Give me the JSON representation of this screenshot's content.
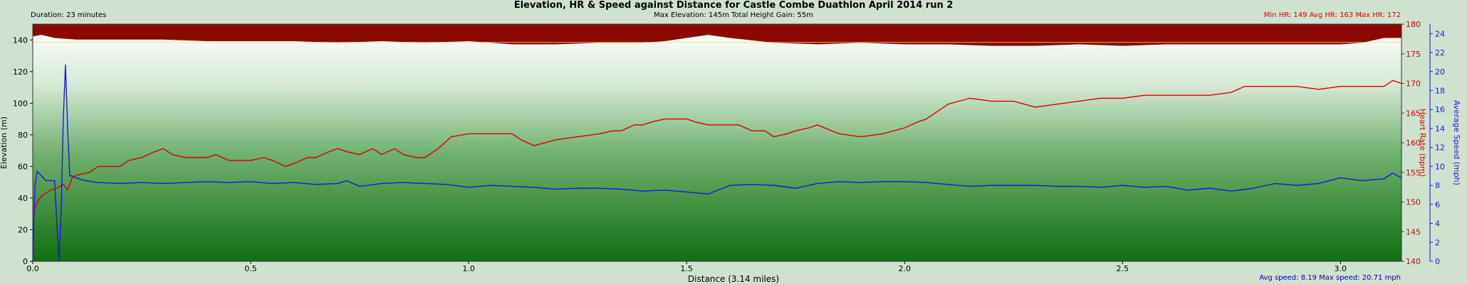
{
  "header": {
    "title": "Elevation, HR & Speed against Distance for Castle Combe Duathlon April 2014 run 2",
    "duration": "Duration: 23 minutes",
    "subtitle": "Max Elevation: 145m    Total Height Gain: 55m",
    "hr_stats": "Min HR: 149  Avg HR: 163  Max HR: 172"
  },
  "footer": {
    "xlabel": "Distance (3.14 miles)",
    "speed_stats": "Avg speed: 8.19  Max speed: 20.71 mph"
  },
  "colors": {
    "background": "#cfe2cf",
    "elevation_fill": "#8b0a00",
    "hr_line": "#e00000",
    "speed_line": "#1a1ae0",
    "gradient_top": "#ffffff",
    "gradient_bottom": "#107010"
  },
  "chart_data": {
    "type": "line",
    "title": "Elevation, HR & Speed against Distance for Castle Combe Duathlon April 2014 run 2",
    "xlabel": "Distance (3.14 miles)",
    "x_ticks": [
      0.0,
      0.5,
      1.0,
      1.5,
      2.0,
      2.5,
      3.0
    ],
    "x_tick_labels": [
      "0.0",
      "0.5",
      "1.0",
      "1.5",
      "2.0",
      "2.5",
      "3.0"
    ],
    "xlim": [
      0,
      3.14
    ],
    "grid": false,
    "axes": {
      "left": {
        "label": "Elevation (m)",
        "range": [
          0,
          150
        ],
        "ticks": [
          0,
          20,
          40,
          60,
          80,
          100,
          120,
          140
        ]
      },
      "right1": {
        "label": "Heart Rate (bpm)",
        "range": [
          140,
          180
        ],
        "ticks": [
          140,
          145,
          150,
          155,
          160,
          165,
          170,
          175,
          180
        ]
      },
      "right2": {
        "label": "Average Speed (mph)",
        "range": [
          0,
          25
        ],
        "ticks": [
          0,
          2,
          4,
          6,
          8,
          10,
          12,
          14,
          16,
          18,
          20,
          22,
          24
        ]
      }
    },
    "series": [
      {
        "name": "Elevation",
        "axis": "left",
        "x": [
          0,
          0.02,
          0.05,
          0.1,
          0.2,
          0.3,
          0.4,
          0.5,
          0.6,
          0.7,
          0.8,
          0.9,
          1.0,
          1.05,
          1.1,
          1.2,
          1.3,
          1.4,
          1.45,
          1.5,
          1.55,
          1.6,
          1.7,
          1.8,
          1.9,
          2.0,
          2.1,
          2.2,
          2.3,
          2.4,
          2.5,
          2.6,
          2.7,
          2.8,
          2.9,
          3.0,
          3.05,
          3.1,
          3.14
        ],
        "y": [
          142,
          143,
          141,
          140,
          140,
          140,
          139,
          139,
          139,
          138,
          139,
          138,
          139,
          138,
          137,
          137,
          138,
          138,
          139,
          141,
          143,
          141,
          138,
          137,
          138,
          137,
          137,
          136,
          136,
          137,
          136,
          137,
          137,
          137,
          137,
          137,
          138,
          141,
          141
        ]
      },
      {
        "name": "Heart Rate",
        "axis": "right1",
        "x": [
          0,
          0.01,
          0.02,
          0.04,
          0.06,
          0.07,
          0.08,
          0.09,
          0.1,
          0.13,
          0.15,
          0.2,
          0.22,
          0.25,
          0.28,
          0.3,
          0.32,
          0.35,
          0.38,
          0.4,
          0.42,
          0.45,
          0.5,
          0.53,
          0.55,
          0.58,
          0.6,
          0.63,
          0.65,
          0.68,
          0.7,
          0.72,
          0.75,
          0.78,
          0.8,
          0.83,
          0.85,
          0.88,
          0.9,
          0.93,
          0.96,
          1.0,
          1.05,
          1.1,
          1.12,
          1.15,
          1.2,
          1.25,
          1.3,
          1.33,
          1.35,
          1.38,
          1.4,
          1.42,
          1.45,
          1.5,
          1.52,
          1.55,
          1.58,
          1.62,
          1.65,
          1.68,
          1.7,
          1.73,
          1.75,
          1.78,
          1.8,
          1.85,
          1.9,
          1.95,
          2.0,
          2.03,
          2.05,
          2.08,
          2.1,
          2.15,
          2.2,
          2.25,
          2.3,
          2.35,
          2.4,
          2.45,
          2.5,
          2.55,
          2.58,
          2.6,
          2.65,
          2.7,
          2.75,
          2.78,
          2.8,
          2.85,
          2.9,
          2.95,
          3.0,
          3.05,
          3.1,
          3.12,
          3.14
        ],
        "y": [
          148,
          150,
          151,
          152,
          152.5,
          153,
          152,
          154,
          154.5,
          155,
          156,
          156,
          157,
          157.5,
          158.5,
          159,
          158,
          157.5,
          157.5,
          157.5,
          158,
          157,
          157,
          157.5,
          157,
          156,
          156.5,
          157.5,
          157.5,
          158.5,
          159,
          158.5,
          158,
          159,
          158,
          159,
          158,
          157.5,
          157.5,
          159,
          161,
          161.5,
          161.5,
          161.5,
          160.5,
          159.5,
          160.5,
          161,
          161.5,
          162,
          162,
          163,
          163,
          163.5,
          164,
          164,
          163.5,
          163,
          163,
          163,
          162,
          162,
          161,
          161.5,
          162,
          162.5,
          163,
          161.5,
          161,
          161.5,
          162.5,
          163.5,
          164,
          165.5,
          166.5,
          167.5,
          167,
          167,
          166,
          166.5,
          167,
          167.5,
          167.5,
          168,
          168,
          168,
          168,
          168,
          168.5,
          169.5,
          169.5,
          169.5,
          169.5,
          169,
          169.5,
          169.5,
          169.5,
          170.5,
          170
        ]
      },
      {
        "name": "Average Speed",
        "axis": "right2",
        "x": [
          0,
          0.005,
          0.01,
          0.02,
          0.03,
          0.04,
          0.05,
          0.06,
          0.065,
          0.07,
          0.075,
          0.08,
          0.085,
          0.09,
          0.1,
          0.12,
          0.15,
          0.2,
          0.25,
          0.3,
          0.35,
          0.4,
          0.45,
          0.5,
          0.55,
          0.6,
          0.65,
          0.7,
          0.72,
          0.75,
          0.8,
          0.85,
          0.9,
          0.95,
          1.0,
          1.05,
          1.1,
          1.15,
          1.2,
          1.25,
          1.3,
          1.35,
          1.4,
          1.45,
          1.5,
          1.55,
          1.6,
          1.65,
          1.7,
          1.75,
          1.8,
          1.85,
          1.9,
          1.95,
          2.0,
          2.05,
          2.1,
          2.15,
          2.2,
          2.25,
          2.3,
          2.35,
          2.4,
          2.45,
          2.5,
          2.55,
          2.6,
          2.65,
          2.7,
          2.75,
          2.8,
          2.85,
          2.9,
          2.95,
          3.0,
          3.05,
          3.1,
          3.12,
          3.14
        ],
        "y": [
          0,
          8,
          9.5,
          9,
          8.5,
          8.5,
          8.5,
          0,
          5,
          15,
          20.7,
          14,
          9,
          9,
          8.8,
          8.5,
          8.3,
          8.2,
          8.3,
          8.2,
          8.3,
          8.4,
          8.3,
          8.4,
          8.2,
          8.3,
          8.1,
          8.2,
          8.5,
          7.9,
          8.2,
          8.3,
          8.2,
          8.1,
          7.8,
          8.0,
          7.9,
          7.8,
          7.6,
          7.7,
          7.7,
          7.6,
          7.4,
          7.5,
          7.3,
          7.1,
          8.0,
          8.1,
          8.0,
          7.7,
          8.2,
          8.4,
          8.3,
          8.4,
          8.4,
          8.3,
          8.1,
          7.9,
          8.0,
          8.0,
          8.0,
          7.9,
          7.9,
          7.8,
          8.0,
          7.8,
          7.9,
          7.5,
          7.7,
          7.4,
          7.7,
          8.2,
          8.0,
          8.2,
          8.8,
          8.5,
          8.7,
          9.3,
          8.8
        ]
      }
    ]
  }
}
